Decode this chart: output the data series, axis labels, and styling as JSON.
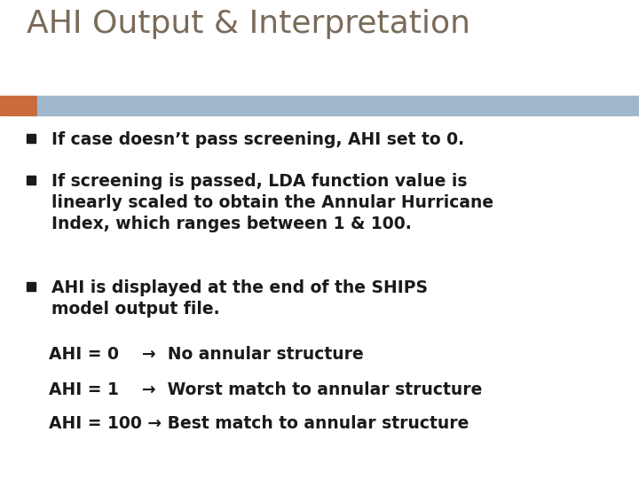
{
  "title": "AHI Output & Interpretation",
  "title_color": "#7a6b5a",
  "title_fontsize": 26,
  "bg_color": "#ffffff",
  "bar_orange_color": "#c96b3a",
  "bar_blue_color": "#a0b8cc",
  "bullet_color": "#1a1a1a",
  "bullet_box_color": "#1a1a1a",
  "bullet_fontsize": 13.5,
  "bullets": [
    "If case doesn’t pass screening, AHI set to 0.",
    "If screening is passed, LDA function value is\nlinearly scaled to obtain the Annular Hurricane\nIndex, which ranges between 1 & 100.",
    "AHI is displayed at the end of the SHIPS\nmodel output file."
  ],
  "ahi_lines": [
    "AHI = 0    →  No annular structure",
    "AHI = 1    →  Worst match to annular structure",
    "AHI = 100 → Best match to annular structure"
  ],
  "ahi_fontsize": 13.5,
  "ahi_color": "#1a1a1a"
}
